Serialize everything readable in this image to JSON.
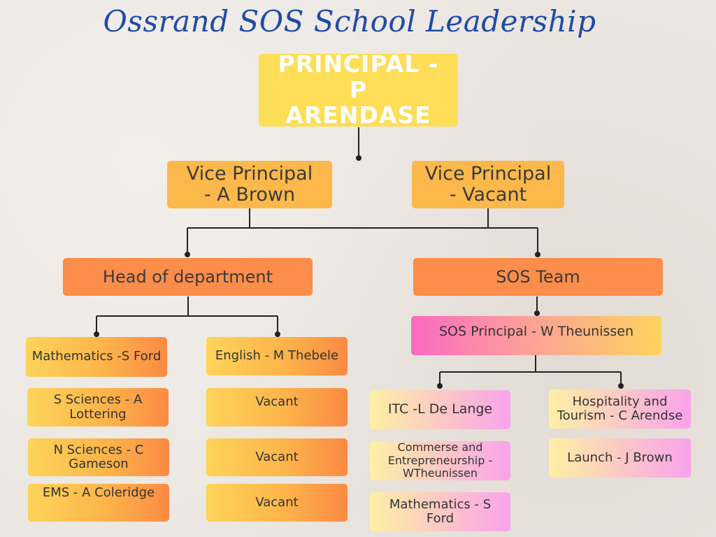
{
  "title": "Ossrand SOS School Leadership",
  "principal": "PRINCIPAL - P ARENDASE",
  "vice_principals": [
    "Vice Principal - A Brown",
    "Vice Principal - Vacant"
  ],
  "head_of_department": {
    "label": "Head of department",
    "left_column": [
      "Mathematics -S Ford",
      "S Sciences - A Lottering",
      "N Sciences - C Gameson",
      "EMS - A Coleridge"
    ],
    "right_column": [
      "English - M Thebele",
      "Vacant",
      "Vacant",
      "Vacant"
    ]
  },
  "sos_team": {
    "label": "SOS Team",
    "sos_principal": "SOS Principal - W Theunissen",
    "left_column": [
      "ITC -L De Lange",
      "Commerse and Entrepreneurship - WTheunissen",
      "Mathematics - S Ford"
    ],
    "right_column": [
      "Hospitality and Tourism - C Arendse",
      "Launch - J Brown"
    ]
  },
  "colors": {
    "title": "#1f4aa8",
    "principal": "#fdde56",
    "vice_principal": "#fcb84a",
    "department": "#fc8d4a",
    "connector": "#222222"
  }
}
